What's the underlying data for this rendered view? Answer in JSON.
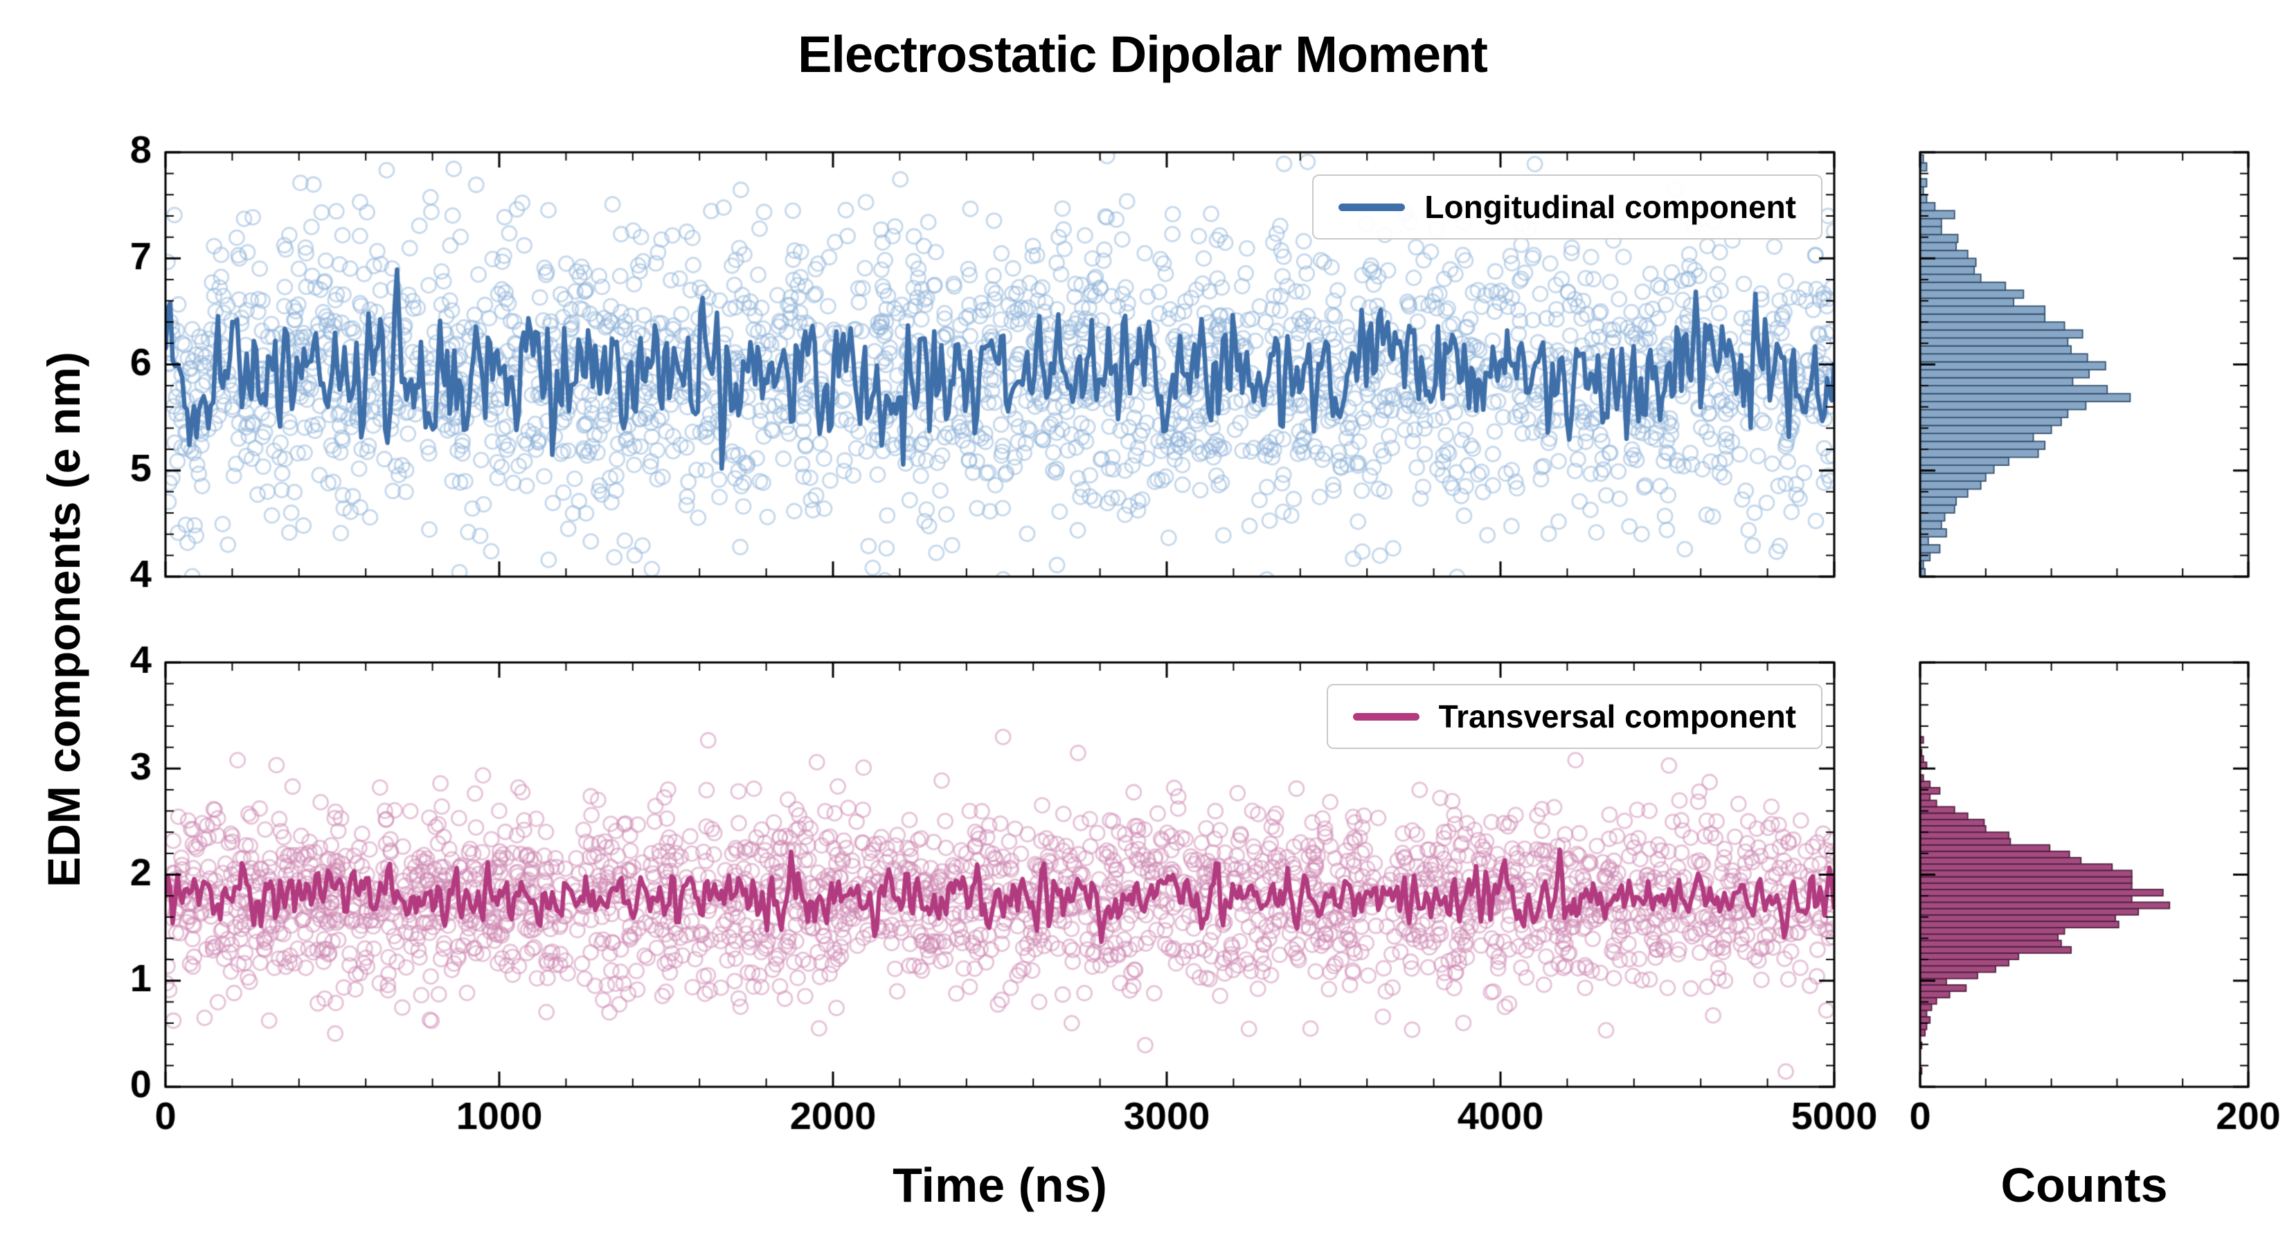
{
  "title": "Electrostatic Dipolar Moment",
  "ylabel": "EDM components (e nm)",
  "xlabel_main": "Time (ns)",
  "xlabel_hist": "Counts",
  "chart_data": [
    {
      "id": "longitudinal",
      "type": "scatter",
      "legend_label": "Longitudinal component",
      "x_axis": {
        "label": "Time (ns)",
        "range": [
          0,
          5000
        ],
        "ticks": [
          0,
          1000,
          2000,
          3000,
          4000,
          5000
        ],
        "minor_step": 200,
        "labels_visible": false
      },
      "y_axis": {
        "range": [
          4,
          8
        ],
        "ticks": [
          4,
          5,
          6,
          7,
          8
        ],
        "minor_step": 0.2,
        "labels_visible": true
      },
      "n_points": 2500,
      "mean": 5.9,
      "std": 0.7,
      "line": {
        "n": 700,
        "mean": 5.9,
        "std": 0.26
      },
      "marker_color": "#8fb3d9",
      "line_color": "#3e6fa9",
      "marker_alpha": 0.5,
      "seed": 42
    },
    {
      "id": "transversal",
      "type": "scatter",
      "legend_label": "Transversal component",
      "x_axis": {
        "label": "Time (ns)",
        "range": [
          0,
          5000
        ],
        "ticks": [
          0,
          1000,
          2000,
          3000,
          4000,
          5000
        ],
        "minor_step": 200,
        "labels_visible": true
      },
      "y_axis": {
        "range": [
          0,
          4
        ],
        "ticks": [
          0,
          1,
          2,
          3,
          4
        ],
        "minor_step": 0.2,
        "labels_visible": true
      },
      "n_points": 2500,
      "mean": 1.78,
      "std": 0.43,
      "line": {
        "n": 700,
        "mean": 1.8,
        "std": 0.12
      },
      "marker_color": "#cf8ab3",
      "line_color": "#b23a7f",
      "marker_alpha": 0.5,
      "seed": 1337
    },
    {
      "id": "longitudinal-histogram",
      "type": "histogram",
      "orientation": "horizontal",
      "source": "longitudinal",
      "x_axis": {
        "label": "Counts",
        "range": [
          0,
          200
        ],
        "ticks": [
          0,
          200
        ],
        "minor_step": 40,
        "labels_visible": false
      },
      "y_axis": {
        "range": [
          4,
          8
        ],
        "ticks": [
          4,
          5,
          6,
          7,
          8
        ],
        "minor_step": 0.2,
        "labels_visible": false
      },
      "bin_width": 0.075,
      "approx_peak_count": 110,
      "bar_fill": "#88a7c6",
      "bar_edge": "#32506d"
    },
    {
      "id": "transversal-histogram",
      "type": "histogram",
      "orientation": "horizontal",
      "source": "transversal",
      "x_axis": {
        "label": "Counts",
        "range": [
          0,
          200
        ],
        "ticks": [
          0,
          200
        ],
        "minor_step": 40,
        "labels_visible": true
      },
      "y_axis": {
        "range": [
          0,
          4
        ],
        "ticks": [
          0,
          1,
          2,
          3,
          4
        ],
        "minor_step": 0.2,
        "labels_visible": false
      },
      "bin_width": 0.06,
      "approx_peak_count": 135,
      "bar_fill": "#a34b80",
      "bar_edge": "#511f3d"
    }
  ]
}
